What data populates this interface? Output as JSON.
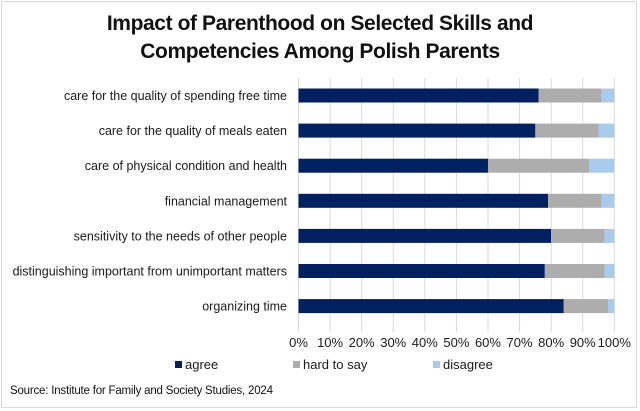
{
  "chart_data": {
    "type": "bar",
    "orientation": "horizontal",
    "stacked": true,
    "title": "Impact of Parenthood on Selected Skills and Competencies Among Polish Parents",
    "title_lines": [
      "Impact of Parenthood on Selected Skills and",
      "Competencies Among Polish Parents"
    ],
    "xlabel": "",
    "ylabel": "",
    "xlim": [
      0,
      100
    ],
    "x_ticks": [
      "0%",
      "10%",
      "20%",
      "30%",
      "40%",
      "50%",
      "60%",
      "70%",
      "80%",
      "90%",
      "100%"
    ],
    "grid": true,
    "legend_position": "bottom",
    "categories": [
      "care for the quality of spending free time",
      "care for the quality of meals eaten ",
      "care of physical condition and health",
      "financial management",
      "sensitivity to the needs of other people",
      "distinguishing important from unimportant matters",
      "organizing time"
    ],
    "series": [
      {
        "name": "agree",
        "color": "#002060",
        "values": [
          76,
          75,
          60,
          79,
          80,
          78,
          84
        ]
      },
      {
        "name": "hard to say",
        "color": "#ADADAD",
        "values": [
          20,
          20,
          32,
          17,
          17,
          19,
          14
        ]
      },
      {
        "name": "disagree",
        "color": "#A9CBED",
        "values": [
          4,
          5,
          8,
          4,
          3,
          3,
          2
        ]
      }
    ],
    "source": "Source: Institute for Family and Society Studies, 2024"
  }
}
